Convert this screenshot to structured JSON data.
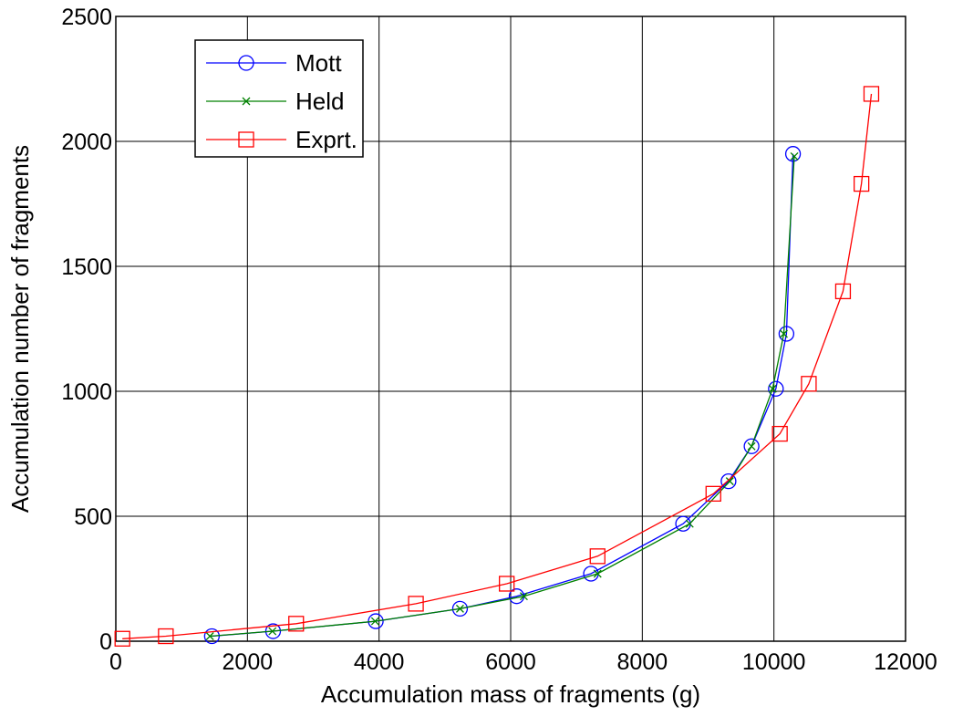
{
  "chart_data": {
    "type": "line",
    "title": "",
    "xlabel": "Accumulation mass of fragments (g)",
    "ylabel": "Accumulation number of fragments",
    "xlim": [
      0,
      12000
    ],
    "ylim": [
      0,
      2500
    ],
    "xticks": [
      0,
      2000,
      4000,
      6000,
      8000,
      10000,
      12000
    ],
    "yticks": [
      0,
      500,
      1000,
      1500,
      2000,
      2500
    ],
    "xtick_labels": [
      "0",
      "2000",
      "4000",
      "6000",
      "8000",
      "10000",
      "12000"
    ],
    "ytick_labels": [
      "0",
      "500",
      "1000",
      "1500",
      "2000",
      "2500"
    ],
    "grid": true,
    "legend_position": "top-left",
    "series": [
      {
        "name": "Mott",
        "color": "#0000ff",
        "marker": "circle",
        "x": [
          1460,
          2390,
          3950,
          5230,
          6090,
          7220,
          8620,
          9310,
          9660,
          10030,
          10190,
          10290
        ],
        "y": [
          20,
          40,
          80,
          130,
          180,
          270,
          470,
          640,
          780,
          1010,
          1230,
          1950
        ]
      },
      {
        "name": "Held",
        "color": "#008000",
        "marker": "x",
        "x": [
          1430,
          2380,
          3940,
          5230,
          6200,
          7320,
          8720,
          9330,
          9660,
          9980,
          10150,
          10310
        ],
        "y": [
          20,
          40,
          80,
          130,
          180,
          270,
          470,
          640,
          780,
          1010,
          1230,
          1940
        ]
      },
      {
        "name": "Exprt.",
        "color": "#ff0000",
        "marker": "square",
        "x": [
          100,
          760,
          2740,
          4560,
          5940,
          7320,
          9080,
          10090,
          10530,
          11050,
          11330,
          11480
        ],
        "y": [
          10,
          20,
          70,
          150,
          230,
          340,
          590,
          830,
          1030,
          1400,
          1830,
          2190
        ]
      }
    ]
  }
}
